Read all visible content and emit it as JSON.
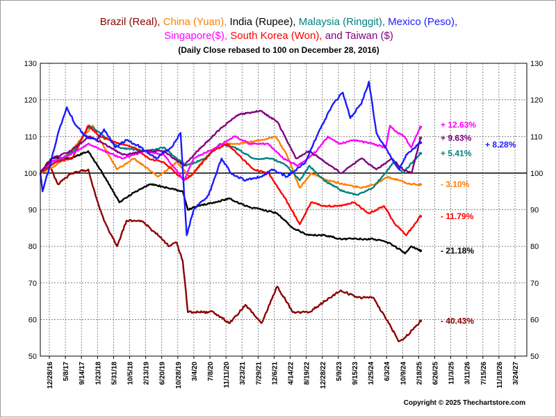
{
  "chart_data": {
    "type": "line",
    "title_line1": [
      {
        "text": "Brazil (Real), ",
        "color": "#8b0000"
      },
      {
        "text": "China (Yuan), ",
        "color": "#ff7f00"
      },
      {
        "text": "India (Rupee), ",
        "color": "#000000"
      },
      {
        "text": "Malaysia (Ringgit), ",
        "color": "#008080"
      },
      {
        "text": "Mexico (Peso),",
        "color": "#1a1aff"
      }
    ],
    "title_line2": [
      {
        "text": "Singapore($), ",
        "color": "#ff00ff"
      },
      {
        "text": "South Korea (Won), ",
        "color": "#ff0000"
      },
      {
        "text": " and Taiwan ($)",
        "color": "#800080"
      }
    ],
    "subtitle": "(Daily Close rebased to 100 on December 28, 2016)",
    "ylim": [
      50,
      130
    ],
    "yticks": [
      50,
      60,
      70,
      80,
      90,
      100,
      110,
      120,
      130
    ],
    "xlim": [
      "2016-12-28",
      "2027-11-10"
    ],
    "xtick_labels": [
      "12/28/16",
      "5/8/17",
      "9/14/17",
      "1/23/18",
      "5/31/18",
      "10/5/18",
      "2/13/19",
      "6/20/19",
      "10/28/19",
      "3/4/20",
      "7/8/20",
      "11/11/20",
      "3/23/21",
      "7/29/21",
      "12/6/21",
      "4/14/22",
      "8/19/22",
      "12/28/22",
      "5/9/23",
      "9/15/23",
      "1/25/24",
      "6/3/24",
      "10/9/24",
      "2/18/25",
      "6/26/25",
      "11/3/25",
      "3/11/26",
      "7/15/26",
      "11/18/26",
      "3/24/27"
    ],
    "baseline": 100,
    "grid": true,
    "copyright": "Copyright © 2025 Thechartstore.com",
    "series": [
      {
        "name": "Singapore($)",
        "color": "#ff00ff",
        "end_label": "+ 12.63%",
        "label_y": 113.2,
        "points": [
          [
            "2016-12-28",
            100
          ],
          [
            "2017-03-15",
            103
          ],
          [
            "2017-09-01",
            105
          ],
          [
            "2018-02-01",
            108
          ],
          [
            "2018-06-01",
            106
          ],
          [
            "2018-11-01",
            104
          ],
          [
            "2019-05-01",
            106
          ],
          [
            "2019-10-01",
            105
          ],
          [
            "2020-03-15",
            98
          ],
          [
            "2020-06-01",
            104
          ],
          [
            "2020-12-01",
            107
          ],
          [
            "2021-05-01",
            110
          ],
          [
            "2021-09-01",
            108
          ],
          [
            "2022-02-01",
            108
          ],
          [
            "2022-06-01",
            104
          ],
          [
            "2022-10-01",
            102
          ],
          [
            "2023-03-01",
            106
          ],
          [
            "2023-06-01",
            110
          ],
          [
            "2023-09-01",
            108
          ],
          [
            "2024-01-01",
            109
          ],
          [
            "2024-06-01",
            108
          ],
          [
            "2024-09-15",
            107
          ],
          [
            "2024-10-20",
            113
          ],
          [
            "2024-12-20",
            111
          ],
          [
            "2025-02-15",
            110
          ],
          [
            "2025-04-10",
            107
          ],
          [
            "2025-06-26",
            112.6
          ]
        ]
      },
      {
        "name": "Taiwan ($)",
        "color": "#800080",
        "end_label": "+ 9.63%",
        "label_y": 109.6,
        "points": [
          [
            "2016-12-28",
            100
          ],
          [
            "2017-04-01",
            104
          ],
          [
            "2017-09-01",
            106
          ],
          [
            "2018-02-01",
            110
          ],
          [
            "2018-06-01",
            108
          ],
          [
            "2018-11-01",
            105
          ],
          [
            "2019-05-01",
            106
          ],
          [
            "2019-10-01",
            106
          ],
          [
            "2020-03-15",
            102
          ],
          [
            "2020-07-01",
            106
          ],
          [
            "2021-01-01",
            112
          ],
          [
            "2021-06-01",
            116
          ],
          [
            "2021-12-01",
            117
          ],
          [
            "2022-04-15",
            114
          ],
          [
            "2022-09-15",
            104
          ],
          [
            "2022-12-28",
            106
          ],
          [
            "2023-04-01",
            104
          ],
          [
            "2023-09-15",
            100
          ],
          [
            "2024-03-01",
            104
          ],
          [
            "2024-07-01",
            101
          ],
          [
            "2024-11-01",
            104
          ],
          [
            "2025-02-01",
            101
          ],
          [
            "2025-04-15",
            100
          ],
          [
            "2025-06-26",
            109.6
          ]
        ]
      },
      {
        "name": "Mexico (Peso)",
        "color": "#1a1aff",
        "end_label": "+ 8.28%",
        "label_y": 107.8,
        "points": [
          [
            "2016-12-28",
            100
          ],
          [
            "2017-01-15",
            95
          ],
          [
            "2017-03-15",
            102
          ],
          [
            "2017-06-01",
            112
          ],
          [
            "2017-08-01",
            118
          ],
          [
            "2017-10-15",
            113
          ],
          [
            "2018-01-01",
            110
          ],
          [
            "2018-04-01",
            109
          ],
          [
            "2018-06-01",
            112
          ],
          [
            "2018-09-01",
            107
          ],
          [
            "2018-12-01",
            109
          ],
          [
            "2019-04-01",
            107
          ],
          [
            "2019-08-01",
            104
          ],
          [
            "2019-12-01",
            107
          ],
          [
            "2020-02-15",
            111
          ],
          [
            "2020-04-05",
            83
          ],
          [
            "2020-06-01",
            90
          ],
          [
            "2020-10-01",
            94
          ],
          [
            "2021-01-15",
            104
          ],
          [
            "2021-04-01",
            100
          ],
          [
            "2021-08-01",
            98
          ],
          [
            "2021-12-01",
            99
          ],
          [
            "2022-03-01",
            101
          ],
          [
            "2022-07-01",
            99
          ],
          [
            "2022-12-01",
            103
          ],
          [
            "2023-03-01",
            110
          ],
          [
            "2023-07-15",
            119
          ],
          [
            "2023-10-01",
            122
          ],
          [
            "2023-12-01",
            115
          ],
          [
            "2024-03-01",
            119
          ],
          [
            "2024-05-01",
            125
          ],
          [
            "2024-07-01",
            111
          ],
          [
            "2024-10-01",
            106
          ],
          [
            "2025-01-01",
            101
          ],
          [
            "2025-03-01",
            105
          ],
          [
            "2025-06-26",
            108.3
          ]
        ]
      },
      {
        "name": "Malaysia (Ringgit)",
        "color": "#008080",
        "end_label": "+ 5.41%",
        "label_y": 105.4,
        "points": [
          [
            "2016-12-28",
            100
          ],
          [
            "2017-05-01",
            103
          ],
          [
            "2017-10-01",
            106
          ],
          [
            "2018-02-01",
            113
          ],
          [
            "2018-05-01",
            111
          ],
          [
            "2018-10-01",
            107
          ],
          [
            "2019-05-01",
            106
          ],
          [
            "2019-10-01",
            107
          ],
          [
            "2020-04-01",
            102
          ],
          [
            "2020-09-01",
            104
          ],
          [
            "2021-01-01",
            108
          ],
          [
            "2021-05-01",
            107
          ],
          [
            "2021-10-01",
            104
          ],
          [
            "2022-03-01",
            104
          ],
          [
            "2022-07-01",
            102
          ],
          [
            "2022-10-15",
            98
          ],
          [
            "2023-01-01",
            102
          ],
          [
            "2023-05-01",
            98
          ],
          [
            "2023-10-01",
            95
          ],
          [
            "2024-02-01",
            94
          ],
          [
            "2024-06-01",
            96
          ],
          [
            "2024-09-15",
            100
          ],
          [
            "2024-11-15",
            103
          ],
          [
            "2025-02-01",
            100
          ],
          [
            "2025-06-26",
            105.4
          ]
        ]
      },
      {
        "name": "China (Yuan)",
        "color": "#ff7f00",
        "end_label": "- 3.10%",
        "label_y": 96.9,
        "points": [
          [
            "2016-12-28",
            100
          ],
          [
            "2017-05-01",
            102
          ],
          [
            "2017-09-01",
            106
          ],
          [
            "2018-03-01",
            113
          ],
          [
            "2018-05-01",
            109
          ],
          [
            "2018-09-15",
            101
          ],
          [
            "2019-02-01",
            104
          ],
          [
            "2019-08-15",
            99
          ],
          [
            "2020-01-15",
            103
          ],
          [
            "2020-05-01",
            99
          ],
          [
            "2020-09-01",
            104
          ],
          [
            "2021-01-01",
            108
          ],
          [
            "2021-06-01",
            108
          ],
          [
            "2021-12-01",
            109
          ],
          [
            "2022-04-01",
            110
          ],
          [
            "2022-07-01",
            105
          ],
          [
            "2022-10-15",
            96
          ],
          [
            "2023-01-15",
            100
          ],
          [
            "2023-06-01",
            98
          ],
          [
            "2023-10-01",
            97
          ],
          [
            "2024-03-01",
            96
          ],
          [
            "2024-07-01",
            97
          ],
          [
            "2024-10-01",
            99
          ],
          [
            "2025-01-01",
            98
          ],
          [
            "2025-04-01",
            97
          ],
          [
            "2025-06-26",
            96.9
          ]
        ]
      },
      {
        "name": "South Korea (Won)",
        "color": "#ff0000",
        "end_label": "- 11.79%",
        "label_y": 88.2,
        "points": [
          [
            "2016-12-28",
            100
          ],
          [
            "2017-05-01",
            103
          ],
          [
            "2017-09-15",
            104
          ],
          [
            "2018-01-23",
            113
          ],
          [
            "2018-05-01",
            110
          ],
          [
            "2018-10-01",
            108
          ],
          [
            "2019-02-01",
            107
          ],
          [
            "2019-06-01",
            104
          ],
          [
            "2019-10-01",
            103
          ],
          [
            "2020-03-15",
            98
          ],
          [
            "2020-06-01",
            100
          ],
          [
            "2020-11-01",
            106
          ],
          [
            "2021-03-01",
            108
          ],
          [
            "2021-06-01",
            105
          ],
          [
            "2021-10-01",
            101
          ],
          [
            "2022-02-01",
            100
          ],
          [
            "2022-06-01",
            94
          ],
          [
            "2022-10-15",
            86
          ],
          [
            "2023-01-15",
            92
          ],
          [
            "2023-05-01",
            91
          ],
          [
            "2023-09-01",
            91
          ],
          [
            "2024-01-01",
            92
          ],
          [
            "2024-05-01",
            89
          ],
          [
            "2024-09-01",
            91
          ],
          [
            "2024-12-01",
            86
          ],
          [
            "2025-03-01",
            83
          ],
          [
            "2025-06-26",
            88.2
          ]
        ]
      },
      {
        "name": "India (Rupee)",
        "color": "#000000",
        "end_label": "- 21.18%",
        "label_y": 78.8,
        "points": [
          [
            "2016-12-28",
            100
          ],
          [
            "2017-04-01",
            104
          ],
          [
            "2017-09-01",
            104
          ],
          [
            "2018-01-23",
            106
          ],
          [
            "2018-05-01",
            101
          ],
          [
            "2018-10-05",
            92
          ],
          [
            "2019-02-13",
            95
          ],
          [
            "2019-06-20",
            97
          ],
          [
            "2019-10-28",
            96
          ],
          [
            "2020-03-04",
            95
          ],
          [
            "2020-04-15",
            90
          ],
          [
            "2020-07-08",
            91
          ],
          [
            "2020-11-11",
            92
          ],
          [
            "2021-03-23",
            93
          ],
          [
            "2021-07-29",
            91
          ],
          [
            "2021-12-06",
            90
          ],
          [
            "2022-04-14",
            89
          ],
          [
            "2022-08-19",
            85
          ],
          [
            "2022-12-28",
            83
          ],
          [
            "2023-05-09",
            83
          ],
          [
            "2023-09-15",
            82
          ],
          [
            "2024-01-25",
            82
          ],
          [
            "2024-06-03",
            82
          ],
          [
            "2024-10-09",
            81
          ],
          [
            "2025-01-15",
            79
          ],
          [
            "2025-02-18",
            78
          ],
          [
            "2025-04-10",
            80
          ],
          [
            "2025-06-26",
            78.8
          ]
        ]
      },
      {
        "name": "Brazil (Real)",
        "color": "#8b0000",
        "end_label": "- 40.43%",
        "label_y": 59.6,
        "points": [
          [
            "2016-12-28",
            100
          ],
          [
            "2017-03-01",
            103
          ],
          [
            "2017-05-20",
            97
          ],
          [
            "2017-09-14",
            100
          ],
          [
            "2018-01-23",
            101
          ],
          [
            "2018-04-01",
            93
          ],
          [
            "2018-06-01",
            87
          ],
          [
            "2018-09-15",
            80
          ],
          [
            "2018-12-01",
            87
          ],
          [
            "2019-04-01",
            87
          ],
          [
            "2019-08-15",
            83
          ],
          [
            "2019-11-15",
            80
          ],
          [
            "2020-01-15",
            81
          ],
          [
            "2020-03-04",
            76
          ],
          [
            "2020-04-15",
            62
          ],
          [
            "2020-07-08",
            62
          ],
          [
            "2020-11-11",
            62
          ],
          [
            "2021-03-23",
            59
          ],
          [
            "2021-07-29",
            64
          ],
          [
            "2021-12-06",
            59
          ],
          [
            "2022-04-14",
            69
          ],
          [
            "2022-08-19",
            62
          ],
          [
            "2022-12-28",
            62
          ],
          [
            "2023-05-09",
            65
          ],
          [
            "2023-09-15",
            68
          ],
          [
            "2024-01-25",
            66
          ],
          [
            "2024-06-03",
            66
          ],
          [
            "2024-10-09",
            59
          ],
          [
            "2025-01-01",
            54
          ],
          [
            "2025-02-18",
            55
          ],
          [
            "2025-06-26",
            59.6
          ]
        ]
      }
    ]
  }
}
